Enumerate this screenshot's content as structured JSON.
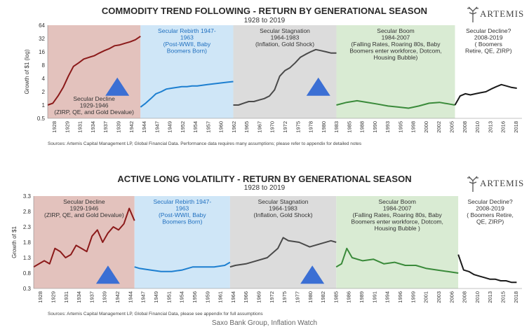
{
  "footer": "Saxo Bank Group, Inflation Watch",
  "logo_text": "ARTEMIS",
  "chart_data": [
    {
      "type": "line",
      "title": "COMMODITY TREND FOLLOWING - RETURN BY GENERATIONAL SEASON",
      "subtitle": "1928 to 2019",
      "ylabel": "Growth of $1 (log)",
      "xlabel": "",
      "yscale": "log",
      "yticks": [
        "0.5",
        "1",
        "2",
        "4",
        "8",
        "16",
        "32",
        "64"
      ],
      "ylim": [
        0.5,
        64
      ],
      "xlim": [
        1928,
        2020
      ],
      "xticks": [
        "1928",
        "1929",
        "1931",
        "1934",
        "1937",
        "1939",
        "1942",
        "1944",
        "1947",
        "1949",
        "1952",
        "1954",
        "1957",
        "1960",
        "1962",
        "1965",
        "1967",
        "1970",
        "1972",
        "1975",
        "1978",
        "1980",
        "1983",
        "1985",
        "1988",
        "1990",
        "1993",
        "1995",
        "1998",
        "2000",
        "2002",
        "2005",
        "2008",
        "2010",
        "2013",
        "2016",
        "2018"
      ],
      "grid": false,
      "source": "Sources: Artemis Capital Management LP, Global Financial Data. Performance data requires many assumptions; please refer to appendix for detailed notes",
      "seasons": [
        {
          "start": 1928,
          "end": 1946,
          "color": "#e3c2bd",
          "line_color": "#8b1a1a",
          "label": [
            "Secular Decline",
            "1929-1946",
            "(ZIRP, QE, and Gold Devalue)"
          ]
        },
        {
          "start": 1946,
          "end": 1964,
          "color": "#cfe6f7",
          "line_color": "#1d7fd0",
          "label": [
            "Secular Rebirth 1947-",
            "1963",
            "(Post-WWII, Baby",
            "Boomers Born)"
          ]
        },
        {
          "start": 1964,
          "end": 1984,
          "color": "#dcdcdc",
          "line_color": "#4a4a4a",
          "label": [
            "Secular Stagnation",
            "1964-1983",
            "(Inflation, Gold Shock)"
          ]
        },
        {
          "start": 1984,
          "end": 2007,
          "color": "#d9ebd3",
          "line_color": "#3a8a3a",
          "label": [
            "Secular Boom",
            "1984-2007",
            "(Falling Rates, Roaring 80s, Baby",
            "Boomers enter workforce, Dotcom,",
            "Housing Bubble)"
          ]
        },
        {
          "start": 2007,
          "end": 2020,
          "color": "#ffffff",
          "line_color": "#1a1a1a",
          "label": [
            "Secular Decline?",
            "2008-2019",
            "( Boomers",
            "Retire, QE, ZIRP)"
          ]
        }
      ],
      "arrows": [
        {
          "x": 1941.5,
          "y": 2.6
        },
        {
          "x": 1980.5,
          "y": 2.6
        }
      ],
      "series": [
        {
          "season": 0,
          "x": [
            1928,
            1929,
            1930,
            1931,
            1932,
            1933,
            1934,
            1935,
            1936,
            1937,
            1938,
            1939,
            1940,
            1941,
            1942,
            1943,
            1944,
            1945,
            1946
          ],
          "values": [
            1.0,
            1.1,
            1.6,
            2.5,
            4.5,
            7.5,
            9.0,
            11.0,
            12.0,
            13.0,
            15.0,
            17.0,
            19.0,
            22.0,
            23.0,
            25.0,
            27.0,
            30.0,
            36.0
          ]
        },
        {
          "season": 1,
          "x": [
            1946,
            1947,
            1948,
            1949,
            1950,
            1951,
            1952,
            1953,
            1954,
            1955,
            1956,
            1957,
            1958,
            1959,
            1960,
            1961,
            1962,
            1963,
            1964
          ],
          "values": [
            0.9,
            1.1,
            1.4,
            1.8,
            2.0,
            2.3,
            2.4,
            2.5,
            2.6,
            2.6,
            2.7,
            2.7,
            2.8,
            2.9,
            3.0,
            3.1,
            3.2,
            3.3,
            3.4
          ]
        },
        {
          "season": 2,
          "x": [
            1964,
            1965,
            1966,
            1967,
            1968,
            1969,
            1970,
            1971,
            1972,
            1973,
            1974,
            1975,
            1976,
            1977,
            1978,
            1979,
            1980,
            1981,
            1982,
            1983,
            1984
          ],
          "values": [
            1.0,
            1.0,
            1.1,
            1.2,
            1.2,
            1.3,
            1.4,
            1.6,
            2.2,
            4.5,
            6.0,
            7.0,
            9.0,
            12.0,
            14.0,
            16.0,
            18.0,
            17.0,
            16.0,
            15.0,
            15.0
          ]
        },
        {
          "season": 3,
          "x": [
            1984,
            1986,
            1988,
            1990,
            1992,
            1994,
            1996,
            1998,
            2000,
            2002,
            2004,
            2006,
            2007
          ],
          "values": [
            1.0,
            1.15,
            1.25,
            1.15,
            1.05,
            0.95,
            0.9,
            0.85,
            0.95,
            1.1,
            1.15,
            1.05,
            1.0
          ]
        },
        {
          "season": 4,
          "x": [
            2007,
            2008,
            2009,
            2010,
            2011,
            2012,
            2013,
            2014,
            2015,
            2016,
            2017,
            2018,
            2019
          ],
          "values": [
            1.0,
            1.6,
            1.8,
            1.7,
            1.8,
            1.9,
            2.0,
            2.3,
            2.6,
            2.9,
            2.7,
            2.5,
            2.4
          ]
        }
      ]
    },
    {
      "type": "line",
      "title": "ACTIVE LONG VOLATILITY - RETURN BY GENERATIONAL SEASON",
      "subtitle": "1928 to 2019",
      "ylabel": "Growth of $1",
      "xlabel": "",
      "yscale": "linear",
      "yticks": [
        "0.3",
        "0.8",
        "1.3",
        "1.8",
        "2.3",
        "2.8",
        "3.3"
      ],
      "ylim": [
        0.3,
        3.3
      ],
      "xlim": [
        1928,
        2020
      ],
      "xticks": [
        "1928",
        "1929",
        "1931",
        "1934",
        "1937",
        "1939",
        "1942",
        "1944",
        "1947",
        "1949",
        "1951",
        "1954",
        "1956",
        "1959",
        "1961",
        "1964",
        "1966",
        "1969",
        "1972",
        "1975",
        "1977",
        "1980",
        "1982",
        "1985",
        "1986",
        "1989",
        "1991",
        "1994",
        "1996",
        "1999",
        "2001",
        "2003",
        "2006",
        "2008",
        "2010",
        "2013",
        "2015",
        "2018"
      ],
      "grid": false,
      "source": "Sources: Artemis Capital Management LP, Global Financial Data, please see appendix for full assumptions",
      "seasons": [
        {
          "start": 1928,
          "end": 1947,
          "color": "#e3c2bd",
          "line_color": "#8b1a1a",
          "label": [
            "Secular Decline",
            "1929-1946",
            "(ZIRP, QE, and Gold Devalue)"
          ]
        },
        {
          "start": 1947,
          "end": 1965,
          "color": "#cfe6f7",
          "line_color": "#1d7fd0",
          "label": [
            "Secular Rebirth 1947-",
            "1963",
            "(Post-WWII, Baby",
            "Boomers Born)"
          ]
        },
        {
          "start": 1965,
          "end": 1985,
          "color": "#dcdcdc",
          "line_color": "#4a4a4a",
          "label": [
            "Secular Stagnation",
            "1964-1983",
            "(Inflation, Gold Shock)"
          ]
        },
        {
          "start": 1985,
          "end": 2008,
          "color": "#d9ebd3",
          "line_color": "#3a8a3a",
          "label": [
            "Secular Boom",
            "1984-2007",
            "(Falling Rates, Roaring 80s, Baby",
            "Boomers enter workforce, Dotcom,",
            "Housing Bubble )"
          ]
        },
        {
          "start": 2008,
          "end": 2020,
          "color": "#ffffff",
          "line_color": "#1a1a1a",
          "label": [
            "Secular Decline?",
            "2008-2019",
            "( Boomers Retire,",
            "QE, ZIRP)"
          ]
        }
      ],
      "arrows": [
        {
          "x": 1942,
          "y": 0.75
        },
        {
          "x": 1980.5,
          "y": 0.75
        }
      ],
      "series": [
        {
          "season": 0,
          "x": [
            1928,
            1929,
            1930,
            1931,
            1932,
            1933,
            1934,
            1935,
            1936,
            1937,
            1938,
            1939,
            1940,
            1941,
            1942,
            1943,
            1944,
            1945,
            1946,
            1947
          ],
          "values": [
            1.0,
            1.1,
            1.2,
            1.1,
            1.6,
            1.5,
            1.3,
            1.4,
            1.7,
            1.6,
            1.5,
            2.0,
            2.2,
            1.8,
            2.1,
            2.3,
            2.2,
            2.4,
            2.9,
            2.5
          ]
        },
        {
          "season": 1,
          "x": [
            1947,
            1948,
            1950,
            1952,
            1954,
            1956,
            1958,
            1960,
            1962,
            1964,
            1965
          ],
          "values": [
            1.0,
            0.95,
            0.9,
            0.85,
            0.85,
            0.9,
            1.0,
            1.0,
            1.0,
            1.05,
            1.15
          ]
        },
        {
          "season": 2,
          "x": [
            1965,
            1966,
            1968,
            1970,
            1972,
            1974,
            1975,
            1976,
            1978,
            1980,
            1982,
            1984,
            1985
          ],
          "values": [
            1.0,
            1.05,
            1.1,
            1.2,
            1.3,
            1.6,
            1.95,
            1.85,
            1.8,
            1.65,
            1.75,
            1.85,
            1.8
          ]
        },
        {
          "season": 3,
          "x": [
            1985,
            1986,
            1987,
            1988,
            1990,
            1992,
            1994,
            1996,
            1998,
            2000,
            2002,
            2004,
            2006,
            2008
          ],
          "values": [
            1.0,
            1.1,
            1.6,
            1.3,
            1.2,
            1.25,
            1.1,
            1.15,
            1.05,
            1.05,
            0.95,
            0.9,
            0.85,
            0.8
          ]
        },
        {
          "season": 4,
          "x": [
            2008,
            2009,
            2010,
            2011,
            2012,
            2013,
            2014,
            2015,
            2016,
            2017,
            2018,
            2019
          ],
          "values": [
            1.4,
            0.9,
            0.85,
            0.75,
            0.7,
            0.65,
            0.6,
            0.6,
            0.55,
            0.55,
            0.5,
            0.5
          ]
        }
      ]
    }
  ]
}
